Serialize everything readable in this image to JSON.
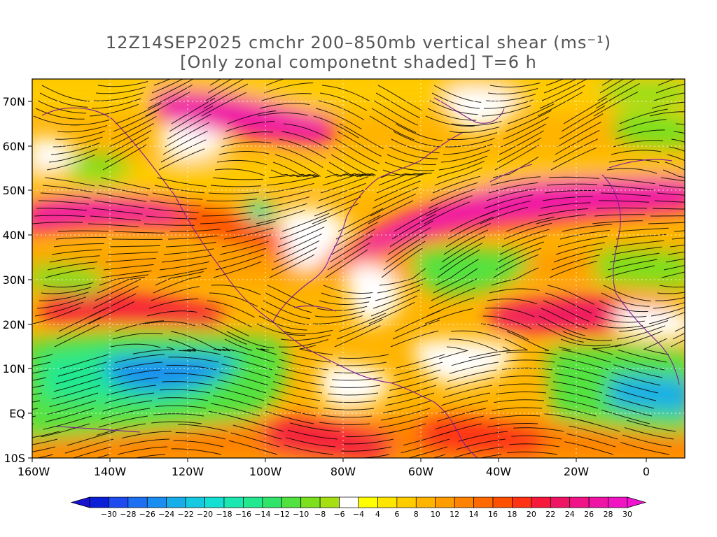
{
  "title": {
    "line1": "12Z14SEP2025 cmchr 200–850mb vertical shear (ms⁻¹)",
    "line2": "[Only zonal componetnt shaded] T=6 h"
  },
  "map": {
    "lat_labels": [
      "70N",
      "60N",
      "50N",
      "40N",
      "30N",
      "20N",
      "10N",
      "EQ",
      "10S"
    ],
    "lon_labels": [
      "160W",
      "140W",
      "120W",
      "100W",
      "80W",
      "60W",
      "40W",
      "20W",
      "0"
    ]
  },
  "colorbar": {
    "labels": [
      "−30",
      "−28",
      "−26",
      "−24",
      "−22",
      "−20",
      "−18",
      "−16",
      "−14",
      "−12",
      "−10",
      "−8",
      "−6",
      "−4",
      "4",
      "6",
      "8",
      "10",
      "12",
      "14",
      "16",
      "18",
      "20",
      "22",
      "24",
      "26",
      "28",
      "30"
    ],
    "colors": [
      "#0a1fd6",
      "#1e4af0",
      "#1f6ff2",
      "#1a8ef0",
      "#16aee8",
      "#14c9e0",
      "#13e0d2",
      "#1ae8b0",
      "#22e890",
      "#30e46a",
      "#52e240",
      "#7ce01e",
      "#a6e012",
      "#ffffff",
      "#ffff00",
      "#ffe600",
      "#ffcc00",
      "#ffb400",
      "#ff9c00",
      "#ff8200",
      "#ff6a00",
      "#ff5000",
      "#ff3214",
      "#f51a3c",
      "#f01464",
      "#f01486",
      "#f014a6",
      "#f014c2"
    ]
  }
}
